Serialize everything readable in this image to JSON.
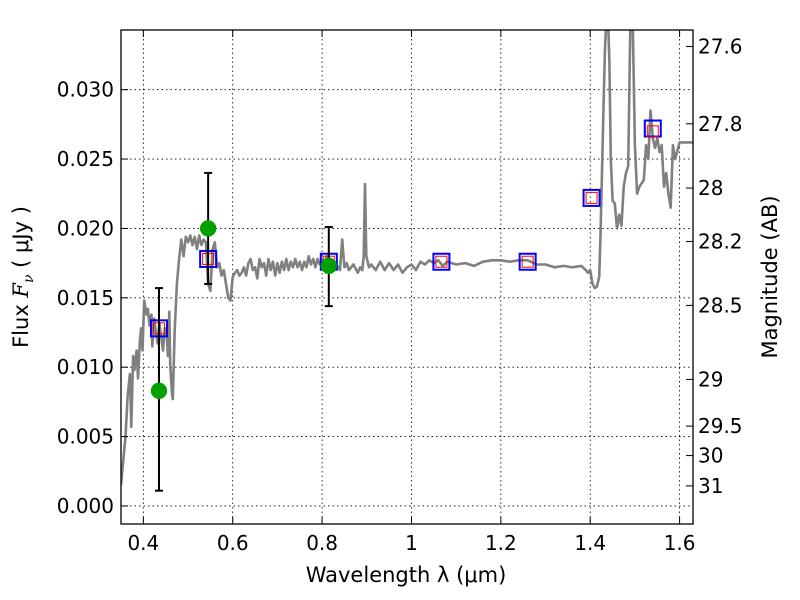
{
  "chart_data": {
    "type": "scatter",
    "xlabel": "Wavelength  λ (μm)",
    "ylabel": {
      "prefix": "Flux  ",
      "symbol": "F",
      "subscript": "ν",
      "units": "  ( μJy )"
    },
    "y2label": "Magnitude (AB)",
    "xlim": [
      0.35,
      1.63
    ],
    "ylim": [
      -0.0013,
      0.0343
    ],
    "grid": true,
    "x_ticks": [
      0.4,
      0.6,
      0.8,
      1.0,
      1.2,
      1.4,
      1.6
    ],
    "x_tick_labels": [
      "0.4",
      "0.6",
      "0.8",
      "1",
      "1.2",
      "1.4",
      "1.6"
    ],
    "y_ticks": [
      0.0,
      0.005,
      0.01,
      0.015,
      0.02,
      0.025,
      0.03
    ],
    "y_tick_labels": [
      "0.000",
      "0.005",
      "0.010",
      "0.015",
      "0.020",
      "0.025",
      "0.030"
    ],
    "mag_ticks": [
      {
        "mag": 27.6,
        "label": "27.6"
      },
      {
        "mag": 27.8,
        "label": "27.8"
      },
      {
        "mag": 28.0,
        "label": "28"
      },
      {
        "mag": 28.2,
        "label": "28.2"
      },
      {
        "mag": 28.5,
        "label": "28.5"
      },
      {
        "mag": 29.0,
        "label": "29"
      },
      {
        "mag": 29.5,
        "label": "29.5"
      },
      {
        "mag": 30.0,
        "label": "30"
      },
      {
        "mag": 31.0,
        "label": "31"
      }
    ],
    "series": [
      {
        "kind": "model_spectrum",
        "color": "#808080",
        "points": [
          [
            0.35,
            0.0015
          ],
          [
            0.36,
            0.005
          ],
          [
            0.365,
            0.008
          ],
          [
            0.37,
            0.0095
          ],
          [
            0.373,
            0.0057
          ],
          [
            0.377,
            0.0108
          ],
          [
            0.38,
            0.0098
          ],
          [
            0.385,
            0.0112
          ],
          [
            0.388,
            0.0092
          ],
          [
            0.392,
            0.0118
          ],
          [
            0.395,
            0.0128
          ],
          [
            0.398,
            0.0112
          ],
          [
            0.402,
            0.0148
          ],
          [
            0.407,
            0.0138
          ],
          [
            0.41,
            0.0142
          ],
          [
            0.414,
            0.013
          ],
          [
            0.418,
            0.0138
          ],
          [
            0.42,
            0.0115
          ],
          [
            0.424,
            0.0135
          ],
          [
            0.428,
            0.0125
          ],
          [
            0.432,
            0.0117
          ],
          [
            0.436,
            0.0132
          ],
          [
            0.44,
            0.0122
          ],
          [
            0.444,
            0.0112
          ],
          [
            0.448,
            0.0128
          ],
          [
            0.452,
            0.0125
          ],
          [
            0.455,
            0.0108
          ],
          [
            0.458,
            0.014
          ],
          [
            0.46,
            0.0102
          ],
          [
            0.464,
            0.0082
          ],
          [
            0.466,
            0.0077
          ],
          [
            0.47,
            0.0125
          ],
          [
            0.475,
            0.016
          ],
          [
            0.48,
            0.0178
          ],
          [
            0.485,
            0.0192
          ],
          [
            0.49,
            0.018
          ],
          [
            0.495,
            0.0194
          ],
          [
            0.5,
            0.019
          ],
          [
            0.505,
            0.0195
          ],
          [
            0.51,
            0.0188
          ],
          [
            0.515,
            0.0194
          ],
          [
            0.52,
            0.0185
          ],
          [
            0.525,
            0.0195
          ],
          [
            0.53,
            0.0188
          ],
          [
            0.535,
            0.0192
          ],
          [
            0.54,
            0.019
          ],
          [
            0.545,
            0.016
          ],
          [
            0.55,
            0.0155
          ],
          [
            0.555,
            0.0185
          ],
          [
            0.56,
            0.019
          ],
          [
            0.565,
            0.0172
          ],
          [
            0.57,
            0.0175
          ],
          [
            0.575,
            0.0166
          ],
          [
            0.58,
            0.017
          ],
          [
            0.585,
            0.016
          ],
          [
            0.59,
            0.015
          ],
          [
            0.595,
            0.0148
          ],
          [
            0.6,
            0.0165
          ],
          [
            0.605,
            0.0168
          ],
          [
            0.61,
            0.017
          ],
          [
            0.615,
            0.0166
          ],
          [
            0.62,
            0.0168
          ],
          [
            0.625,
            0.0172
          ],
          [
            0.63,
            0.0166
          ],
          [
            0.635,
            0.0175
          ],
          [
            0.64,
            0.0178
          ],
          [
            0.645,
            0.017
          ],
          [
            0.65,
            0.0172
          ],
          [
            0.655,
            0.0164
          ],
          [
            0.66,
            0.0178
          ],
          [
            0.665,
            0.0172
          ],
          [
            0.67,
            0.0175
          ],
          [
            0.675,
            0.0166
          ],
          [
            0.68,
            0.0178
          ],
          [
            0.685,
            0.017
          ],
          [
            0.69,
            0.0176
          ],
          [
            0.695,
            0.0166
          ],
          [
            0.7,
            0.0175
          ],
          [
            0.705,
            0.0168
          ],
          [
            0.71,
            0.0176
          ],
          [
            0.715,
            0.017
          ],
          [
            0.72,
            0.0178
          ],
          [
            0.725,
            0.017
          ],
          [
            0.73,
            0.0176
          ],
          [
            0.735,
            0.0172
          ],
          [
            0.74,
            0.0178
          ],
          [
            0.745,
            0.0172
          ],
          [
            0.75,
            0.0176
          ],
          [
            0.755,
            0.017
          ],
          [
            0.76,
            0.0176
          ],
          [
            0.765,
            0.0172
          ],
          [
            0.77,
            0.018
          ],
          [
            0.775,
            0.0174
          ],
          [
            0.78,
            0.0178
          ],
          [
            0.785,
            0.0172
          ],
          [
            0.79,
            0.0178
          ],
          [
            0.795,
            0.0174
          ],
          [
            0.8,
            0.0178
          ],
          [
            0.805,
            0.0172
          ],
          [
            0.81,
            0.018
          ],
          [
            0.815,
            0.0175
          ],
          [
            0.82,
            0.0178
          ],
          [
            0.825,
            0.0173
          ],
          [
            0.83,
            0.0175
          ],
          [
            0.84,
            0.017
          ],
          [
            0.845,
            0.0192
          ],
          [
            0.85,
            0.0172
          ],
          [
            0.855,
            0.0175
          ],
          [
            0.86,
            0.017
          ],
          [
            0.87,
            0.0174
          ],
          [
            0.88,
            0.0168
          ],
          [
            0.885,
            0.0172
          ],
          [
            0.89,
            0.017
          ],
          [
            0.893,
            0.018
          ],
          [
            0.896,
            0.0232
          ],
          [
            0.899,
            0.018
          ],
          [
            0.905,
            0.0172
          ],
          [
            0.91,
            0.0174
          ],
          [
            0.92,
            0.017
          ],
          [
            0.93,
            0.0176
          ],
          [
            0.94,
            0.017
          ],
          [
            0.95,
            0.0175
          ],
          [
            0.96,
            0.017
          ],
          [
            0.97,
            0.0174
          ],
          [
            0.98,
            0.0168
          ],
          [
            0.99,
            0.0172
          ],
          [
            1.0,
            0.0174
          ],
          [
            1.01,
            0.017
          ],
          [
            1.02,
            0.0176
          ],
          [
            1.03,
            0.0174
          ],
          [
            1.04,
            0.0177
          ],
          [
            1.05,
            0.0175
          ],
          [
            1.06,
            0.0177
          ],
          [
            1.07,
            0.0173
          ],
          [
            1.08,
            0.0176
          ],
          [
            1.09,
            0.0175
          ],
          [
            1.1,
            0.0174
          ],
          [
            1.12,
            0.0175
          ],
          [
            1.14,
            0.0173
          ],
          [
            1.16,
            0.0176
          ],
          [
            1.18,
            0.0177
          ],
          [
            1.2,
            0.0177
          ],
          [
            1.22,
            0.0176
          ],
          [
            1.24,
            0.0177
          ],
          [
            1.26,
            0.0177
          ],
          [
            1.28,
            0.0174
          ],
          [
            1.3,
            0.0174
          ],
          [
            1.32,
            0.0172
          ],
          [
            1.34,
            0.0173
          ],
          [
            1.36,
            0.0172
          ],
          [
            1.38,
            0.0173
          ],
          [
            1.39,
            0.017
          ],
          [
            1.395,
            0.0168
          ],
          [
            1.4,
            0.017
          ],
          [
            1.405,
            0.016
          ],
          [
            1.41,
            0.0157
          ],
          [
            1.415,
            0.0158
          ],
          [
            1.42,
            0.0165
          ],
          [
            1.423,
            0.0195
          ],
          [
            1.427,
            0.025
          ],
          [
            1.43,
            0.029
          ],
          [
            1.433,
            0.033
          ],
          [
            1.436,
            0.035
          ],
          [
            1.44,
            0.035
          ],
          [
            1.443,
            0.032
          ],
          [
            1.446,
            0.025
          ],
          [
            1.45,
            0.022
          ],
          [
            1.455,
            0.0218
          ],
          [
            1.46,
            0.02
          ],
          [
            1.465,
            0.021
          ],
          [
            1.47,
            0.0202
          ],
          [
            1.475,
            0.023
          ],
          [
            1.48,
            0.024
          ],
          [
            1.485,
            0.0245
          ],
          [
            1.49,
            0.035
          ],
          [
            1.495,
            0.035
          ],
          [
            1.5,
            0.026
          ],
          [
            1.505,
            0.0225
          ],
          [
            1.51,
            0.023
          ],
          [
            1.52,
            0.0235
          ],
          [
            1.525,
            0.026
          ],
          [
            1.53,
            0.025
          ],
          [
            1.535,
            0.0285
          ],
          [
            1.54,
            0.0265
          ],
          [
            1.545,
            0.0258
          ],
          [
            1.55,
            0.0265
          ],
          [
            1.555,
            0.0255
          ],
          [
            1.56,
            0.026
          ],
          [
            1.565,
            0.023
          ],
          [
            1.57,
            0.024
          ],
          [
            1.575,
            0.0225
          ],
          [
            1.58,
            0.0215
          ],
          [
            1.585,
            0.026
          ],
          [
            1.59,
            0.025
          ],
          [
            1.6,
            0.0262
          ],
          [
            1.61,
            0.0262
          ],
          [
            1.62,
            0.0262
          ],
          [
            1.63,
            0.0262
          ]
        ]
      },
      {
        "kind": "model_photometry",
        "marker": "square",
        "color": "#0000ff",
        "points": [
          [
            0.435,
            0.0128
          ],
          [
            0.545,
            0.0178
          ],
          [
            0.815,
            0.0176
          ],
          [
            1.067,
            0.0176
          ],
          [
            1.26,
            0.0176
          ],
          [
            1.403,
            0.0222
          ],
          [
            1.54,
            0.0272
          ]
        ]
      },
      {
        "kind": "model_photometry_inner",
        "marker": "square",
        "color": "#ff0000",
        "points": [
          [
            0.435,
            0.0128
          ],
          [
            0.545,
            0.0178
          ],
          [
            0.815,
            0.0176
          ],
          [
            1.067,
            0.0176
          ],
          [
            1.26,
            0.0176
          ],
          [
            1.403,
            0.0222
          ],
          [
            1.54,
            0.027
          ]
        ]
      },
      {
        "kind": "observed",
        "marker": "circle",
        "color": "#00a000",
        "points": [
          {
            "x": 0.435,
            "y": 0.0083,
            "ylo": 0.0011,
            "yhi": 0.0157
          },
          {
            "x": 0.545,
            "y": 0.02,
            "ylo": 0.016,
            "yhi": 0.024
          },
          {
            "x": 0.815,
            "y": 0.0173,
            "ylo": 0.0144,
            "yhi": 0.0201
          }
        ]
      }
    ]
  }
}
